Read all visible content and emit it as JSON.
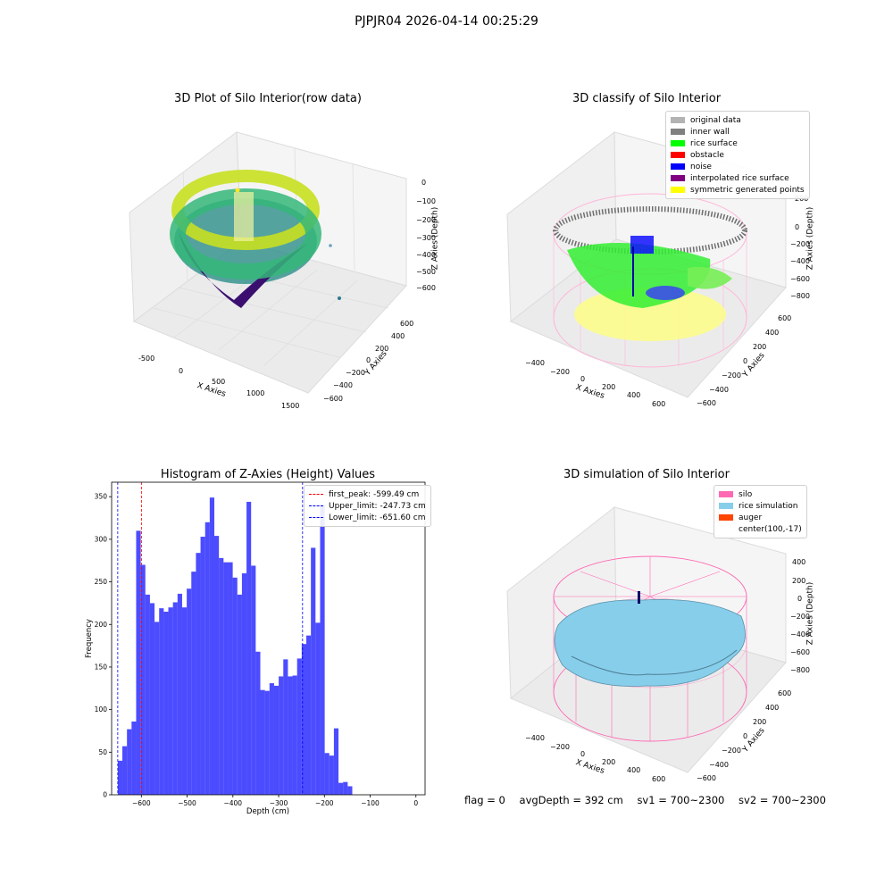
{
  "suptitle": "PJPJR04 2026-04-14 00:25:29",
  "panels": {
    "raw": {
      "title": "3D Plot of Silo Interior(row data)",
      "xlabel": "X Axies",
      "ylabel": "Y Axies",
      "zlabel": "Z Axies (Depth)",
      "xticks": [
        "-500",
        "0",
        "500",
        "1000",
        "1500"
      ],
      "yticks": [
        "600",
        "400",
        "200",
        "0",
        "−200",
        "−400",
        "−600"
      ],
      "zticks": [
        "0",
        "−100",
        "−200",
        "−300",
        "−400",
        "−500",
        "−600"
      ]
    },
    "classify": {
      "title": "3D classify of Silo Interior",
      "xlabel": "X Axies",
      "ylabel": "Y Axies",
      "zlabel": "Z Axies (Depth)",
      "xticks": [
        "−400",
        "−200",
        "0",
        "200",
        "400",
        "600"
      ],
      "yticks": [
        "600",
        "400",
        "200",
        "0",
        "−200",
        "−400",
        "−600"
      ],
      "zticks": [
        "200",
        "0",
        "−200",
        "−400",
        "−600",
        "−800"
      ],
      "legend": [
        {
          "label": "original data",
          "color": "#b3b3b3"
        },
        {
          "label": "inner wall",
          "color": "#808080"
        },
        {
          "label": "rice surface",
          "color": "#00ff00"
        },
        {
          "label": "obstacle",
          "color": "#ff0000"
        },
        {
          "label": "noise",
          "color": "#0000ff"
        },
        {
          "label": "interpolated rice surface",
          "color": "#800080"
        },
        {
          "label": "symmetric generated points",
          "color": "#ffff00"
        }
      ]
    },
    "simulation": {
      "title": "3D simulation of Silo Interior",
      "xlabel": "X Axies",
      "ylabel": "Y Axies",
      "zlabel": "Z Axies (Depth)",
      "xticks": [
        "−400",
        "−200",
        "0",
        "200",
        "400",
        "600"
      ],
      "yticks": [
        "600",
        "400",
        "200",
        "0",
        "−200",
        "−400",
        "−600"
      ],
      "zticks": [
        "400",
        "200",
        "0",
        "−200",
        "−400",
        "−600",
        "−800"
      ],
      "legend": [
        {
          "label": "silo",
          "color": "#ff69b4"
        },
        {
          "label": "rice simulation",
          "color": "#87ceeb"
        },
        {
          "label": "auger",
          "color": "#ff4500"
        },
        {
          "label": "center(100,-17)",
          "color": ""
        }
      ]
    }
  },
  "chart_data": {
    "type": "bar",
    "title": "Histogram of Z-Axies (Height) Values",
    "xlabel": "Depth (cm)",
    "ylabel": "Frequency",
    "xlim": [
      -665,
      20
    ],
    "ylim": [
      0,
      367
    ],
    "xticks": [
      -600,
      -500,
      -400,
      -300,
      -200,
      -100,
      0
    ],
    "xtick_labels": [
      "−600",
      "−500",
      "−400",
      "−300",
      "−200",
      "−100",
      "0"
    ],
    "yticks": [
      0,
      50,
      100,
      150,
      200,
      250,
      300,
      350
    ],
    "bar_color": "#0000ff",
    "bin_start": -651.6,
    "bin_width": 10.05,
    "values": [
      40,
      57,
      77,
      86,
      310,
      270,
      235,
      225,
      203,
      219,
      215,
      220,
      226,
      236,
      220,
      242,
      262,
      284,
      303,
      320,
      349,
      304,
      278,
      273,
      273,
      255,
      235,
      260,
      344,
      269,
      168,
      123,
      122,
      131,
      128,
      139,
      159,
      139,
      140,
      160,
      177,
      187,
      290,
      202,
      340,
      49,
      46,
      78,
      14,
      15,
      10
    ],
    "lines": [
      {
        "label": "first_peak: -599.49 cm",
        "x": -599.49,
        "color": "#ff0000"
      },
      {
        "label": "Upper_limit: -247.73 cm",
        "x": -247.73,
        "color": "#0000ff"
      },
      {
        "label": "Lower_limit: -651.60 cm",
        "x": -651.6,
        "color": "#0000ff"
      }
    ],
    "legend_position": "top-right"
  },
  "status": {
    "flag": "flag = 0",
    "avg": "avgDepth = 392 cm",
    "sv1": "sv1 = 700~2300",
    "sv2": "sv2 = 700~2300"
  }
}
